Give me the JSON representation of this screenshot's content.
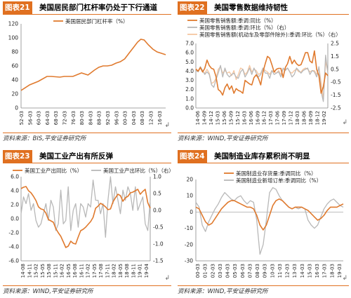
{
  "panels": [
    {
      "fig_no": "图表21",
      "title": "美国居民部门杠杆率仍处于下行通道",
      "source": "资料来源：BIS,平安证券研究所",
      "mark": "↲"
    },
    {
      "fig_no": "图表22",
      "title": "美国零售数据维持韧性",
      "source": "资料来源：WIND,平安证券研究所",
      "mark": "↲"
    },
    {
      "fig_no": "图表23",
      "title": "美国工业产出有所反弹",
      "source": "资料来源：WIND,平安证券研究所",
      "mark": "↲"
    },
    {
      "fig_no": "图表24",
      "title": "美国制造业库存累积尚不明显",
      "source": "资料来源：WIND,平安证券研究所",
      "mark": "↲"
    }
  ],
  "colors": {
    "orange": "#e07a2e",
    "gray": "#b8b8b8",
    "peach": "#f6c6a0",
    "accent": "#e07020"
  },
  "chart_data": [
    {
      "type": "line",
      "x_ticks": [
        "52-03",
        "56-03",
        "60-03",
        "64-03",
        "68-03",
        "72-03",
        "76-03",
        "80-03",
        "84-03",
        "88-03",
        "92-03",
        "96-03",
        "00-03",
        "04-03",
        "08-03",
        "12-03",
        "16-03"
      ],
      "x_range": [
        1952,
        2019
      ],
      "ylim": [
        0,
        120
      ],
      "y_ticks": [
        0,
        20,
        40,
        60,
        80,
        100,
        120
      ],
      "series": [
        {
          "name": "美国居民部门杠杆率（%）",
          "color": "#e07a2e",
          "points": [
            [
              1952,
              25
            ],
            [
              1956,
              33
            ],
            [
              1960,
              38
            ],
            [
              1964,
              45
            ],
            [
              1966,
              45
            ],
            [
              1970,
              44
            ],
            [
              1972,
              45
            ],
            [
              1976,
              45
            ],
            [
              1980,
              50
            ],
            [
              1983,
              47
            ],
            [
              1986,
              54
            ],
            [
              1988,
              58
            ],
            [
              1990,
              60
            ],
            [
              1992,
              60
            ],
            [
              1994,
              61
            ],
            [
              1996,
              64
            ],
            [
              1998,
              66
            ],
            [
              2000,
              70
            ],
            [
              2002,
              78
            ],
            [
              2004,
              86
            ],
            [
              2006,
              94
            ],
            [
              2007.5,
              98
            ],
            [
              2009,
              97
            ],
            [
              2011,
              90
            ],
            [
              2013,
              84
            ],
            [
              2015,
              80
            ],
            [
              2017,
              78
            ],
            [
              2019,
              76
            ]
          ]
        }
      ]
    },
    {
      "type": "line",
      "x_ticks": [
        "14-06",
        "14-09",
        "14-12",
        "15-03",
        "15-06",
        "15-09",
        "15-12",
        "16-03",
        "16-06",
        "16-09",
        "16-12",
        "17-03",
        "17-06",
        "17-09",
        "17-12",
        "18-03",
        "18-06",
        "18-09",
        "18-12",
        "19-02"
      ],
      "ylim_left": [
        0,
        7
      ],
      "y_ticks_left": [
        "0.0",
        "1.0",
        "2.0",
        "3.0",
        "4.0",
        "5.0",
        "6.0",
        "7.0"
      ],
      "ylim_right": [
        -2.5,
        2.5
      ],
      "y_ticks_right": [
        "-2.5",
        "-1.5",
        "-0.5",
        "0.5",
        "1.5",
        "2.5"
      ],
      "series": [
        {
          "name": "美国零售销售额:季调:同比（%）",
          "axis": "left",
          "color": "#e07a2e",
          "values": [
            4.2,
            4.0,
            4.4,
            3.9,
            4.3,
            5.2,
            4.6,
            4.3,
            4.2,
            3.4,
            2.0,
            1.8,
            1.4,
            2.2,
            2.6,
            2.0,
            2.4,
            1.6,
            2.1,
            1.9,
            1.8,
            1.6,
            3.0,
            2.8,
            2.6,
            2.5,
            3.3,
            3.6,
            3.2,
            2.5,
            3.9,
            4.8,
            5.6,
            5.4,
            4.7,
            3.9,
            4.2,
            4.3,
            4.3,
            3.3,
            4.4,
            4.8,
            5.6,
            4.8,
            5.2,
            4.8,
            4.6,
            4.7,
            5.3,
            6.0,
            6.0,
            5.1,
            4.9,
            6.2,
            4.2,
            3.5,
            1.6,
            2.3,
            3.8,
            3.5
          ]
        },
        {
          "name": "美国零售销售额:季调:环比（%）（右）",
          "axis": "right",
          "color": "#b8b8b8",
          "values": [
            0.4,
            0.3,
            0.7,
            0.4,
            0.1,
            0.3,
            0.1,
            -0.7,
            -0.9,
            -0.3,
            0.2,
            0.8,
            -0.1,
            0.6,
            0.1,
            -0.1,
            0.1,
            0.2,
            -0.1,
            -0.2,
            0.3,
            0.5,
            -0.1,
            0.2,
            0.6,
            0.1,
            0.6,
            0.2,
            -0.1,
            0.1,
            0.6,
            0.2,
            0.2,
            -0.2,
            0.4,
            0.1,
            0.2,
            0.3,
            -0.1,
            0.6,
            0.4,
            0.6,
            0.3,
            -0.1,
            0.1,
            0.6,
            0.4,
            0.2,
            0.4,
            0.5,
            0.6,
            0.1,
            0.4,
            0.3,
            -0.1,
            0.7,
            -1.2,
            -2.0,
            1.6,
            0.2
          ]
        },
        {
          "name": "美国零售销售额(机动车及零部件除外):季调:环比（%）（右）",
          "axis": "right",
          "color": "#f6c6a0",
          "values": [
            0.6,
            0.3,
            0.6,
            0.3,
            0.2,
            0.5,
            0.2,
            -0.6,
            -0.5,
            -0.2,
            0.5,
            0.7,
            0.2,
            0.4,
            0.2,
            0.3,
            0.0,
            0.4,
            -0.3,
            0.1,
            0.6,
            0.5,
            0.1,
            0.3,
            0.8,
            0.3,
            0.5,
            0.4,
            0.1,
            0.2,
            0.6,
            0.4,
            0.3,
            0.1,
            0.4,
            0.3,
            0.2,
            0.4,
            0.1,
            0.5,
            0.5,
            0.6,
            0.3,
            0.2,
            0.4,
            0.5,
            0.3,
            0.3,
            0.5,
            0.6,
            0.5,
            0.3,
            0.4,
            0.4,
            0.1,
            0.6,
            -0.5,
            -1.8,
            1.1,
            0.3
          ]
        }
      ]
    },
    {
      "type": "line",
      "x_ticks": [
        "14-08",
        "14-11",
        "15-02",
        "15-05",
        "15-08",
        "15-11",
        "16-02",
        "16-05",
        "16-08",
        "16-11",
        "17-02",
        "17-05",
        "17-08",
        "17-11",
        "18-02",
        "18-05",
        "18-08",
        "18-11",
        "19-01",
        "19-04"
      ],
      "ylim_left": [
        -6,
        6
      ],
      "y_ticks_left": [
        "-6.0",
        "-4.0",
        "-2.0",
        "0.0",
        "2.0",
        "4.0",
        "6.0"
      ],
      "ylim_right": [
        -1.5,
        1.0
      ],
      "y_ticks_right": [
        "-1.5",
        "-1.0",
        "-0.5",
        "0.0",
        "0.5",
        "1.0"
      ],
      "series": [
        {
          "name": "美国工业产出同比（%）",
          "axis": "left",
          "color": "#e07a2e",
          "values": [
            4.3,
            4.5,
            4.6,
            4.0,
            3.7,
            3.2,
            2.6,
            1.7,
            1.4,
            1.3,
            0.8,
            -0.1,
            -0.3,
            -0.5,
            -1.4,
            -2.0,
            -2.5,
            -3.3,
            -4.1,
            -3.9,
            -3.2,
            -3.5,
            -3.6,
            -2.6,
            -1.7,
            -1.5,
            -1.2,
            -0.8,
            -0.4,
            0.2,
            1.5,
            1.8,
            2.2,
            2.0,
            1.7,
            1.3,
            1.4,
            2.4,
            3.0,
            3.5,
            3.3,
            2.5,
            3.0,
            3.2,
            3.7,
            3.8,
            4.0,
            4.2,
            3.5,
            3.9,
            4.2,
            2.3,
            1.5
          ]
        },
        {
          "name": "美国工业产出环比（%）（右）",
          "axis": "right",
          "color": "#b8b8b8",
          "values": [
            -0.1,
            0.4,
            0.2,
            0.5,
            0.0,
            0.2,
            -0.3,
            -0.5,
            -0.4,
            -0.1,
            0.2,
            -0.3,
            0.3,
            0.1,
            -0.6,
            -0.4,
            0.6,
            -0.4,
            -0.3,
            0.7,
            -0.6,
            0.0,
            0.2,
            -0.5,
            0.2,
            0.1,
            -0.2,
            0.2,
            0.1,
            0.9,
            0.3,
            0.3,
            -0.1,
            0.2,
            -0.8,
            0.3,
            1.0,
            0.2,
            0.7,
            0.3,
            -0.1,
            0.6,
            0.3,
            0.7,
            0.5,
            0.0,
            0.7,
            0.0,
            0.2,
            0.4,
            -0.4,
            -0.6,
            0.3
          ]
        }
      ]
    },
    {
      "type": "line",
      "x_ticks": [
        "00-03",
        "01-03",
        "02-03",
        "03-03",
        "04-03",
        "05-03",
        "06-03",
        "07-03",
        "08-03",
        "09-03",
        "10-03",
        "11-03",
        "12-03",
        "13-03",
        "14-03",
        "15-03",
        "16-03",
        "17-03",
        "18-03",
        "19-03"
      ],
      "ylim": [
        -30,
        20
      ],
      "y_ticks": [
        -30,
        -20,
        -10,
        0,
        10,
        20
      ],
      "series": [
        {
          "name": "美国制造业存货量:季调同比（%）",
          "color": "#e07a2e",
          "values": [
            3,
            2,
            -2,
            -6,
            -8,
            -7,
            -4,
            -1,
            2,
            4,
            6,
            7,
            7,
            6,
            5,
            4,
            3,
            3,
            2,
            -2,
            -8,
            -11,
            -8,
            -2,
            4,
            7,
            8,
            7,
            5,
            3,
            2,
            3,
            3,
            3,
            2,
            1,
            -1,
            -3,
            -5,
            -4,
            -2,
            1,
            3,
            3,
            3,
            4,
            5
          ]
        },
        {
          "name": "美国制造业新增订单:季调同比（%）",
          "color": "#b8b8b8",
          "values": [
            6,
            3,
            -8,
            -12,
            -6,
            -2,
            2,
            5,
            9,
            12,
            10,
            8,
            7,
            9,
            10,
            7,
            5,
            7,
            6,
            -5,
            -26,
            -20,
            -5,
            12,
            15,
            14,
            10,
            7,
            5,
            3,
            2,
            3,
            2,
            3,
            2,
            -5,
            -8,
            -10,
            -8,
            -3,
            2,
            5,
            7,
            8,
            6,
            4,
            3
          ]
        }
      ]
    }
  ]
}
